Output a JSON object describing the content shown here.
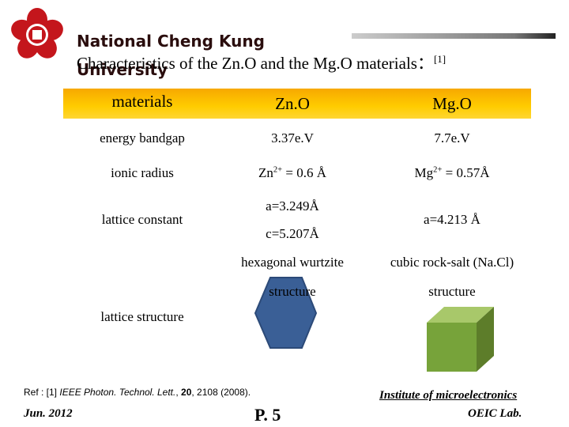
{
  "header": {
    "institution": "National Cheng Kung University",
    "title": {
      "text": "Characteristics of the Zn.O and the Mg.O materials：",
      "sup": "[1]"
    }
  },
  "table": {
    "header": [
      "materials",
      "Zn.O",
      "Mg.O"
    ],
    "rows": [
      [
        "energy bandgap",
        "3.37e.V",
        "7.7e.V"
      ],
      [
        "ionic radius",
        {
          "base": "Zn",
          "sup": "2+",
          "rest": " = 0.6 Å"
        },
        {
          "base": "Mg",
          "sup": "2+",
          "rest": " = 0.57Å"
        }
      ],
      [
        "lattice constant",
        [
          "a=3.249Å",
          "c=5.207Å"
        ],
        "a=4.213 Å"
      ],
      [
        "lattice structure",
        [
          "hexagonal wurtzite",
          "structure"
        ],
        [
          "cubic rock-salt (Na.Cl)",
          "structure"
        ]
      ]
    ]
  },
  "footer": {
    "reference": [
      "Ref : [1] ",
      "IEEE Photon. Technol. Lett.",
      ", ",
      "20",
      ", 2108 (2008)."
    ],
    "institute": "Institute of microelectronics",
    "date": "Jun. 2012",
    "page": "P. 5",
    "lab": "OEIC Lab."
  }
}
